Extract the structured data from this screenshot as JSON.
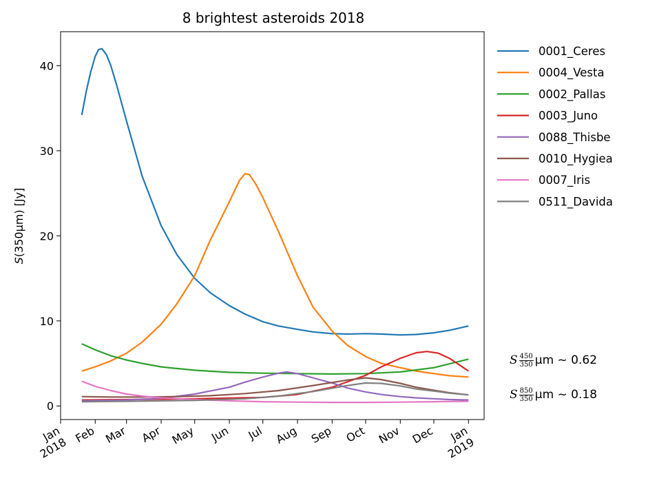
{
  "chart_data": {
    "type": "line",
    "title": "8 brightest asteroids 2018",
    "ylabel": "S(350μm) [Jy]",
    "xlabel": "",
    "xlim": [
      "2018-01-01",
      "2019-01-15"
    ],
    "ylim": [
      -1.6,
      44
    ],
    "y_ticks": [
      0,
      10,
      20,
      30,
      40
    ],
    "x_ticks": [
      {
        "date": "2018-01-01",
        "label": [
          "Jan",
          "2018"
        ]
      },
      {
        "date": "2018-02-01",
        "label": [
          "Feb"
        ]
      },
      {
        "date": "2018-03-01",
        "label": [
          "Mar"
        ]
      },
      {
        "date": "2018-04-01",
        "label": [
          "Apr"
        ]
      },
      {
        "date": "2018-05-01",
        "label": [
          "May"
        ]
      },
      {
        "date": "2018-06-01",
        "label": [
          "Jun"
        ]
      },
      {
        "date": "2018-07-01",
        "label": [
          "Jul"
        ]
      },
      {
        "date": "2018-08-01",
        "label": [
          "Aug"
        ]
      },
      {
        "date": "2018-09-01",
        "label": [
          "Sep"
        ]
      },
      {
        "date": "2018-10-01",
        "label": [
          "Oct"
        ]
      },
      {
        "date": "2018-11-01",
        "label": [
          "Nov"
        ]
      },
      {
        "date": "2018-12-01",
        "label": [
          "Dec"
        ]
      },
      {
        "date": "2019-01-01",
        "label": [
          "Jan",
          "2019"
        ]
      }
    ],
    "legend_position": "outside-right",
    "grid": false,
    "series": [
      {
        "name": "0001_Ceres",
        "color": "#1f77b4",
        "points": [
          [
            "2018-01-20",
            34.2
          ],
          [
            "2018-01-24",
            37.0
          ],
          [
            "2018-01-28",
            39.3
          ],
          [
            "2018-02-01",
            41.1
          ],
          [
            "2018-02-04",
            41.9
          ],
          [
            "2018-02-07",
            42.0
          ],
          [
            "2018-02-11",
            41.3
          ],
          [
            "2018-02-15",
            40.0
          ],
          [
            "2018-02-20",
            37.8
          ],
          [
            "2018-03-01",
            33.5
          ],
          [
            "2018-03-15",
            27.0
          ],
          [
            "2018-04-01",
            21.2
          ],
          [
            "2018-04-15",
            17.8
          ],
          [
            "2018-05-01",
            15.0
          ],
          [
            "2018-05-15",
            13.3
          ],
          [
            "2018-06-01",
            11.8
          ],
          [
            "2018-06-15",
            10.8
          ],
          [
            "2018-07-01",
            9.9
          ],
          [
            "2018-07-15",
            9.4
          ],
          [
            "2018-08-01",
            9.0
          ],
          [
            "2018-08-15",
            8.7
          ],
          [
            "2018-09-01",
            8.5
          ],
          [
            "2018-09-15",
            8.45
          ],
          [
            "2018-10-01",
            8.5
          ],
          [
            "2018-10-15",
            8.45
          ],
          [
            "2018-11-01",
            8.35
          ],
          [
            "2018-11-15",
            8.4
          ],
          [
            "2018-12-01",
            8.6
          ],
          [
            "2018-12-15",
            8.9
          ],
          [
            "2019-01-01",
            9.4
          ]
        ]
      },
      {
        "name": "0004_Vesta",
        "color": "#ff7f0e",
        "points": [
          [
            "2018-01-20",
            4.1
          ],
          [
            "2018-02-01",
            4.6
          ],
          [
            "2018-02-15",
            5.3
          ],
          [
            "2018-03-01",
            6.2
          ],
          [
            "2018-03-15",
            7.5
          ],
          [
            "2018-04-01",
            9.6
          ],
          [
            "2018-04-15",
            12.0
          ],
          [
            "2018-05-01",
            15.3
          ],
          [
            "2018-05-15",
            19.5
          ],
          [
            "2018-06-01",
            24.0
          ],
          [
            "2018-06-10",
            26.5
          ],
          [
            "2018-06-15",
            27.3
          ],
          [
            "2018-06-19",
            27.2
          ],
          [
            "2018-06-25",
            26.0
          ],
          [
            "2018-07-01",
            24.5
          ],
          [
            "2018-07-15",
            20.5
          ],
          [
            "2018-08-01",
            15.3
          ],
          [
            "2018-08-15",
            11.6
          ],
          [
            "2018-09-01",
            8.8
          ],
          [
            "2018-09-15",
            7.1
          ],
          [
            "2018-10-01",
            5.8
          ],
          [
            "2018-10-15",
            5.0
          ],
          [
            "2018-11-01",
            4.5
          ],
          [
            "2018-11-15",
            4.1
          ],
          [
            "2018-12-01",
            3.8
          ],
          [
            "2018-12-15",
            3.55
          ],
          [
            "2019-01-01",
            3.4
          ]
        ]
      },
      {
        "name": "0002_Pallas",
        "color": "#2ca02c",
        "points": [
          [
            "2018-01-20",
            7.3
          ],
          [
            "2018-02-01",
            6.6
          ],
          [
            "2018-02-15",
            5.9
          ],
          [
            "2018-03-01",
            5.4
          ],
          [
            "2018-03-15",
            5.0
          ],
          [
            "2018-04-01",
            4.6
          ],
          [
            "2018-04-15",
            4.4
          ],
          [
            "2018-05-01",
            4.2
          ],
          [
            "2018-06-01",
            3.95
          ],
          [
            "2018-07-01",
            3.85
          ],
          [
            "2018-08-01",
            3.8
          ],
          [
            "2018-09-01",
            3.75
          ],
          [
            "2018-10-01",
            3.8
          ],
          [
            "2018-11-01",
            4.0
          ],
          [
            "2018-12-01",
            4.5
          ],
          [
            "2018-12-15",
            4.95
          ],
          [
            "2019-01-01",
            5.5
          ]
        ]
      },
      {
        "name": "0003_Juno",
        "color": "#d62728",
        "points": [
          [
            "2018-01-20",
            0.7
          ],
          [
            "2018-03-01",
            0.75
          ],
          [
            "2018-05-01",
            0.85
          ],
          [
            "2018-07-01",
            1.0
          ],
          [
            "2018-08-01",
            1.35
          ],
          [
            "2018-09-01",
            2.2
          ],
          [
            "2018-10-01",
            3.6
          ],
          [
            "2018-10-15",
            4.6
          ],
          [
            "2018-11-01",
            5.6
          ],
          [
            "2018-11-15",
            6.25
          ],
          [
            "2018-11-25",
            6.4
          ],
          [
            "2018-12-05",
            6.2
          ],
          [
            "2018-12-15",
            5.6
          ],
          [
            "2019-01-01",
            4.1
          ]
        ]
      },
      {
        "name": "0088_Thisbe",
        "color": "#9467bd",
        "points": [
          [
            "2018-01-20",
            0.6
          ],
          [
            "2018-03-01",
            0.7
          ],
          [
            "2018-04-01",
            0.9
          ],
          [
            "2018-05-01",
            1.4
          ],
          [
            "2018-06-01",
            2.2
          ],
          [
            "2018-06-15",
            2.8
          ],
          [
            "2018-07-01",
            3.4
          ],
          [
            "2018-07-15",
            3.85
          ],
          [
            "2018-07-22",
            4.0
          ],
          [
            "2018-08-01",
            3.8
          ],
          [
            "2018-08-15",
            3.3
          ],
          [
            "2018-09-01",
            2.7
          ],
          [
            "2018-09-15",
            2.1
          ],
          [
            "2018-10-01",
            1.65
          ],
          [
            "2018-10-15",
            1.35
          ],
          [
            "2018-11-01",
            1.1
          ],
          [
            "2018-11-15",
            0.95
          ],
          [
            "2018-12-01",
            0.85
          ],
          [
            "2018-12-15",
            0.75
          ],
          [
            "2019-01-01",
            0.7
          ]
        ]
      },
      {
        "name": "0010_Hygiea",
        "color": "#8c564b",
        "points": [
          [
            "2018-01-20",
            1.1
          ],
          [
            "2018-02-15",
            1.05
          ],
          [
            "2018-03-15",
            1.05
          ],
          [
            "2018-04-15",
            1.1
          ],
          [
            "2018-05-15",
            1.2
          ],
          [
            "2018-06-15",
            1.45
          ],
          [
            "2018-07-15",
            1.8
          ],
          [
            "2018-08-15",
            2.4
          ],
          [
            "2018-09-15",
            3.05
          ],
          [
            "2018-10-01",
            3.3
          ],
          [
            "2018-10-15",
            3.1
          ],
          [
            "2018-11-01",
            2.65
          ],
          [
            "2018-11-15",
            2.2
          ],
          [
            "2018-12-01",
            1.85
          ],
          [
            "2018-12-15",
            1.55
          ],
          [
            "2019-01-01",
            1.3
          ]
        ]
      },
      {
        "name": "0007_Iris",
        "color": "#e377c2",
        "points": [
          [
            "2018-01-20",
            2.9
          ],
          [
            "2018-02-01",
            2.3
          ],
          [
            "2018-02-15",
            1.8
          ],
          [
            "2018-03-01",
            1.4
          ],
          [
            "2018-03-15",
            1.15
          ],
          [
            "2018-04-01",
            0.95
          ],
          [
            "2018-05-01",
            0.75
          ],
          [
            "2018-06-01",
            0.6
          ],
          [
            "2018-07-01",
            0.5
          ],
          [
            "2018-08-01",
            0.45
          ],
          [
            "2018-09-01",
            0.42
          ],
          [
            "2018-10-01",
            0.42
          ],
          [
            "2018-11-01",
            0.45
          ],
          [
            "2018-12-01",
            0.5
          ],
          [
            "2019-01-01",
            0.55
          ]
        ]
      },
      {
        "name": "0511_Davida",
        "color": "#7f7f7f",
        "points": [
          [
            "2018-01-20",
            0.5
          ],
          [
            "2018-03-01",
            0.55
          ],
          [
            "2018-05-01",
            0.65
          ],
          [
            "2018-06-15",
            0.85
          ],
          [
            "2018-07-15",
            1.15
          ],
          [
            "2018-08-15",
            1.7
          ],
          [
            "2018-09-15",
            2.4
          ],
          [
            "2018-10-01",
            2.7
          ],
          [
            "2018-10-15",
            2.65
          ],
          [
            "2018-11-01",
            2.35
          ],
          [
            "2018-11-15",
            2.0
          ],
          [
            "2018-12-01",
            1.75
          ],
          [
            "2018-12-15",
            1.5
          ],
          [
            "2019-01-01",
            1.3
          ]
        ]
      }
    ],
    "annotations": [
      {
        "id": "ratio-450",
        "prefix": "S",
        "num": "450",
        "den": "350",
        "suffix": "μm ~ 0.62"
      },
      {
        "id": "ratio-850",
        "prefix": "S",
        "num": "850",
        "den": "350",
        "suffix": "μm ~ 0.18"
      }
    ]
  }
}
